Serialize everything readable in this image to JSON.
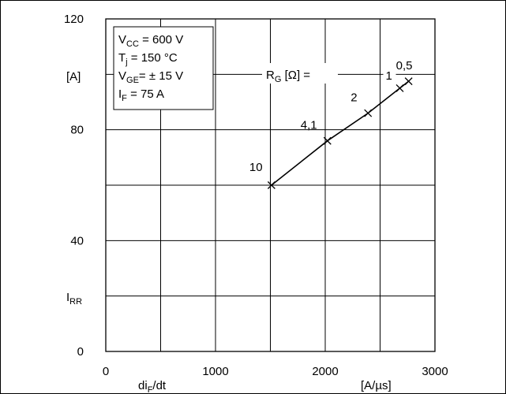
{
  "chart_data": {
    "type": "line",
    "xlim": [
      0,
      3000
    ],
    "ylim": [
      0,
      120
    ],
    "x_ticks": [
      0,
      1000,
      2000,
      3000
    ],
    "y_ticks": [
      0,
      40,
      80,
      120
    ],
    "x_tick_labels": [
      "0",
      "1000",
      "2000",
      "3000"
    ],
    "y_tick_labels": [
      "0",
      "40",
      "80",
      "120"
    ],
    "grid": true,
    "xlabel_main": "di",
    "xlabel_sub": "F",
    "xlabel_tail": "/dt",
    "xunit": "[A/µs]",
    "ylabel_main": "I",
    "ylabel_sub": "RR",
    "yunit": "[A]",
    "conditions": [
      {
        "main": "V",
        "sub": "CC",
        "value": " = 600 V"
      },
      {
        "main": "T",
        "sub": "j",
        "value": "  = 150 °C"
      },
      {
        "main": "V",
        "sub": "GE",
        "value": "= ± 15 V"
      },
      {
        "main": "I",
        "sub": "F",
        "value": "   = 75 A"
      }
    ],
    "param_label_main": "R",
    "param_label_sub": "G",
    "param_label_tail": " [Ω] =",
    "series": [
      {
        "points": [
          {
            "x": 1510,
            "y": 60,
            "label": "10"
          },
          {
            "x": 2020,
            "y": 76,
            "label": "4,1"
          },
          {
            "x": 2390,
            "y": 86,
            "label": "2"
          },
          {
            "x": 2680,
            "y": 95,
            "label": "1"
          },
          {
            "x": 2760,
            "y": 97.5,
            "label": "0,5"
          }
        ]
      }
    ]
  }
}
